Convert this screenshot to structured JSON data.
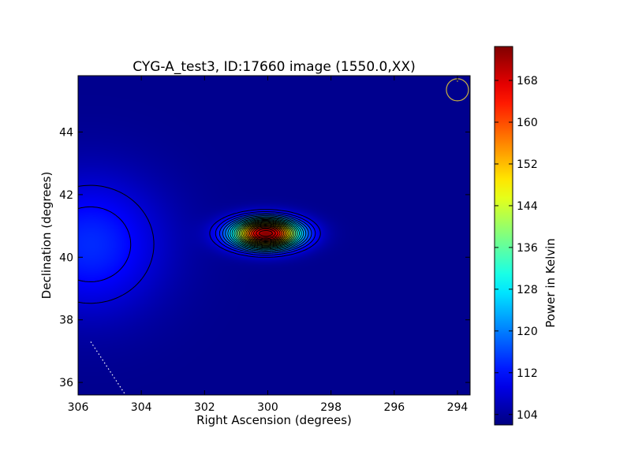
{
  "chart_data": {
    "type": "heatmap",
    "title": "CYG-A_test3, ID:17660 image (1550.0,XX)",
    "xlabel": "Right Ascension (degrees)",
    "ylabel": "Declination (degrees)",
    "colorbar_label": "Power in Kelvin",
    "x_ticks": [
      "306",
      "304",
      "302",
      "300",
      "298",
      "296",
      "294"
    ],
    "y_ticks": [
      "36",
      "38",
      "40",
      "42",
      "44"
    ],
    "colorbar_ticks": [
      "104",
      "112",
      "120",
      "128",
      "136",
      "144",
      "152",
      "160",
      "168"
    ],
    "xlim": [
      306.0,
      293.6
    ],
    "ylim": [
      35.6,
      45.8
    ],
    "color_range": [
      102.0,
      174.5
    ],
    "colormap": "jet",
    "background_level": 103,
    "sources": [
      {
        "ra": 300.05,
        "dec": 40.75,
        "peak": 174,
        "sigma_ra": 0.75,
        "sigma_dec": 0.33,
        "kind": "compact"
      },
      {
        "ra": 305.6,
        "dec": 40.4,
        "peak": 114,
        "sigma_ra": 1.6,
        "sigma_dec": 1.5,
        "kind": "diffuse"
      }
    ],
    "beam_marker": {
      "ra": 294.0,
      "dec": 45.35,
      "radius_deg": 0.35,
      "color": "#c8b040"
    },
    "grid": false,
    "legend": "none"
  }
}
